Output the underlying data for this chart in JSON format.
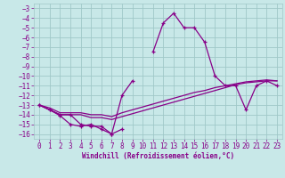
{
  "xlabel": "Windchill (Refroidissement éolien,°C)",
  "x": [
    0,
    1,
    2,
    3,
    4,
    5,
    6,
    7,
    8,
    9,
    10,
    11,
    12,
    13,
    14,
    15,
    16,
    17,
    18,
    19,
    20,
    21,
    22,
    23
  ],
  "main_line": [
    -13,
    -13.5,
    -14,
    -14,
    -15,
    -15.2,
    -15.2,
    -16,
    -12,
    -10.5,
    null,
    -7.5,
    -4.5,
    -3.5,
    -5,
    -5,
    -6.5,
    -10,
    -11,
    -11,
    -13.5,
    -11,
    -10.5,
    -11
  ],
  "trend1": [
    -13,
    -13.3,
    -13.8,
    -13.8,
    -13.8,
    -14.0,
    -14.0,
    -14.2,
    -13.8,
    -13.5,
    -13.2,
    -12.9,
    -12.6,
    -12.3,
    -12.0,
    -11.7,
    -11.5,
    -11.2,
    -11.0,
    -10.8,
    -10.6,
    -10.5,
    -10.4,
    -10.5
  ],
  "trend2": [
    -13,
    -13.5,
    -14.0,
    -14.0,
    -14.0,
    -14.3,
    -14.3,
    -14.5,
    -14.2,
    -13.9,
    -13.6,
    -13.3,
    -13.0,
    -12.7,
    -12.4,
    -12.1,
    -11.8,
    -11.5,
    -11.2,
    -10.9,
    -10.7,
    -10.6,
    -10.5,
    -10.5
  ],
  "zigzag": [
    -13,
    -13.5,
    -14.1,
    -15.0,
    -15.2,
    -15.0,
    -15.5,
    -16.0,
    -15.5,
    null,
    null,
    null,
    null,
    null,
    null,
    null,
    null,
    null,
    null,
    null,
    null,
    null,
    null,
    null
  ],
  "bg_color": "#c8e8e8",
  "line_color": "#880088",
  "grid_color": "#a0c8c8",
  "ylim": [
    -16.5,
    -2.5
  ],
  "xlim": [
    -0.5,
    23.5
  ],
  "yticks": [
    -16,
    -15,
    -14,
    -13,
    -12,
    -11,
    -10,
    -9,
    -8,
    -7,
    -6,
    -5,
    -4,
    -3
  ],
  "xticks": [
    0,
    1,
    2,
    3,
    4,
    5,
    6,
    7,
    8,
    9,
    10,
    11,
    12,
    13,
    14,
    15,
    16,
    17,
    18,
    19,
    20,
    21,
    22,
    23
  ],
  "tick_fontsize": 5.5,
  "label_fontsize": 5.5
}
